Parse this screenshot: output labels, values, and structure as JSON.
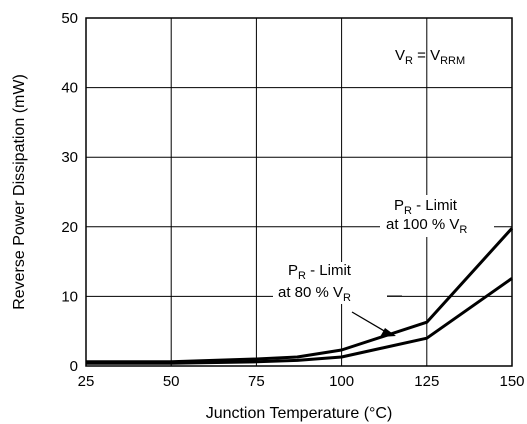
{
  "chart_data": {
    "type": "line",
    "title": "",
    "xlabel": "Junction Temperature (°C)",
    "ylabel": "Reverse Power Dissipation (mW)",
    "xlim": [
      25,
      150
    ],
    "ylim": [
      0,
      50
    ],
    "xticks": [
      25,
      50,
      75,
      100,
      125,
      150
    ],
    "yticks": [
      0,
      10,
      20,
      30,
      40,
      50
    ],
    "grid": true,
    "series": [
      {
        "name": "PR - Limit at 100 % VR",
        "x": [
          25,
          50,
          75,
          87,
          100,
          125,
          150
        ],
        "y": [
          0.6,
          0.6,
          1.0,
          1.3,
          2.3,
          6.3,
          19.8
        ]
      },
      {
        "name": "PR - Limit at 80 % VR",
        "x": [
          25,
          50,
          75,
          87,
          100,
          125,
          150
        ],
        "y": [
          0.4,
          0.4,
          0.6,
          0.8,
          1.3,
          4.0,
          12.6
        ]
      }
    ],
    "annotations": {
      "condition": {
        "main": "V",
        "sub": "R",
        "eq": " = V",
        "sub2": "RRM"
      },
      "limit100": {
        "line1_main": "P",
        "line1_sub": "R",
        "line1_rest": " - Limit",
        "line2_main": "at 100 % V",
        "line2_sub": "R"
      },
      "limit80": {
        "line1_main": "P",
        "line1_sub": "R",
        "line1_rest": " - Limit",
        "line2_main": "at 80 % V",
        "line2_sub": "R"
      }
    }
  }
}
